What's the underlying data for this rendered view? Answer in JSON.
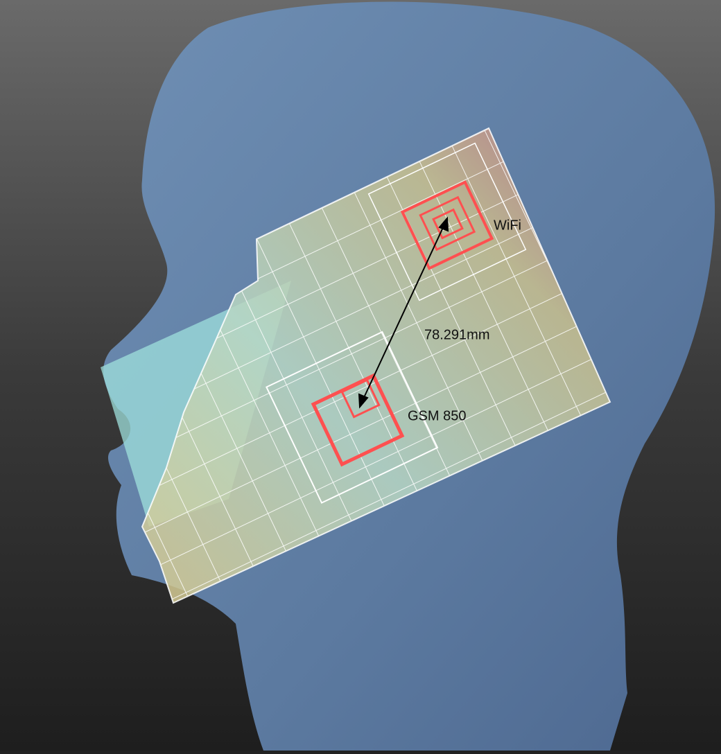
{
  "labels": {
    "wifi": "WiFi",
    "distance": "78.291mm",
    "gsm": "GSM 850"
  }
}
